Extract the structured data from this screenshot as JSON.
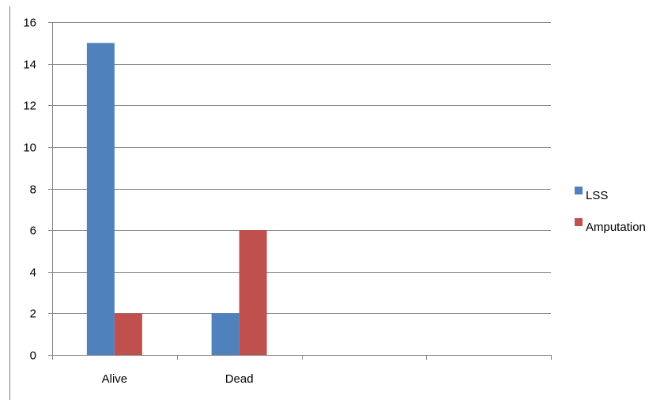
{
  "chart_data": {
    "type": "bar",
    "title": "",
    "categories": [
      "Alive",
      "Dead",
      "",
      ""
    ],
    "series": [
      {
        "name": "LSS",
        "values": [
          15,
          2,
          null,
          null
        ],
        "color": "#4f81bd"
      },
      {
        "name": "Amputation",
        "values": [
          2,
          6,
          null,
          null
        ],
        "color": "#c0504d"
      }
    ],
    "xlabel": "",
    "ylabel": "",
    "ylim": [
      0,
      16
    ],
    "yticks": [
      0,
      2,
      4,
      6,
      8,
      10,
      12,
      14,
      16
    ],
    "grid": true,
    "legend": "right"
  }
}
